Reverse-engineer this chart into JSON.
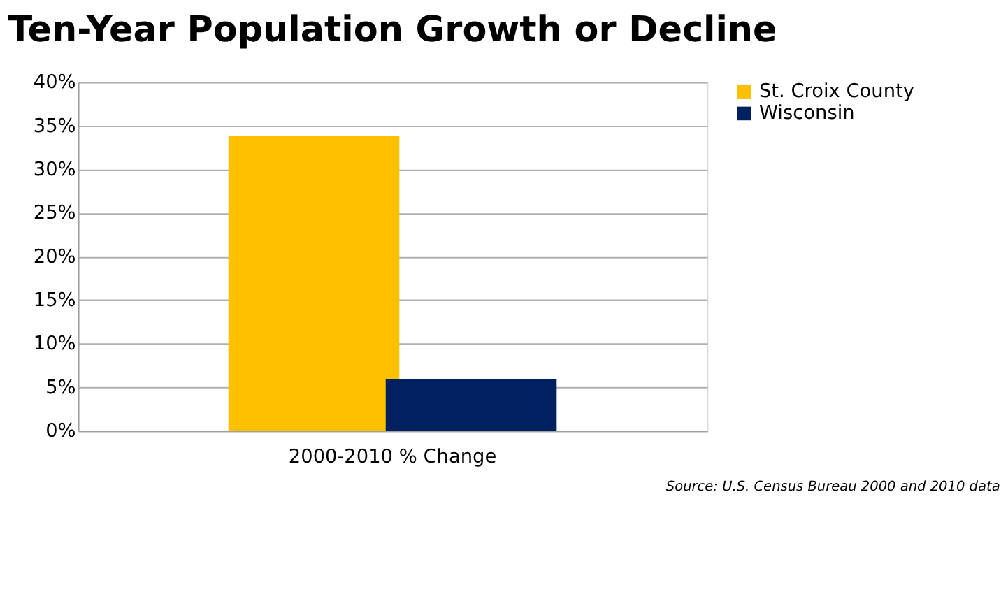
{
  "chart_data": {
    "type": "bar",
    "title": "Ten-Year Population Growth or Decline",
    "categories": [
      "2000-2010 % Change"
    ],
    "series": [
      {
        "name": "St. Croix County",
        "color": "#ffc000",
        "values": [
          33.8
        ]
      },
      {
        "name": "Wisconsin",
        "color": "#002060",
        "values": [
          5.9
        ]
      }
    ],
    "ylim": [
      0,
      40
    ],
    "yticks": [
      {
        "value": 0,
        "label": "0%"
      },
      {
        "value": 5,
        "label": "5%"
      },
      {
        "value": 10,
        "label": "10%"
      },
      {
        "value": 15,
        "label": "15%"
      },
      {
        "value": 20,
        "label": "20%"
      },
      {
        "value": 25,
        "label": "25%"
      },
      {
        "value": 30,
        "label": "30%"
      },
      {
        "value": 35,
        "label": "35%"
      },
      {
        "value": 40,
        "label": "40%"
      }
    ],
    "grid": "y",
    "legend": "right",
    "annotations": [
      "Source: U.S. Census Bureau 2000 and 2010 data"
    ]
  }
}
